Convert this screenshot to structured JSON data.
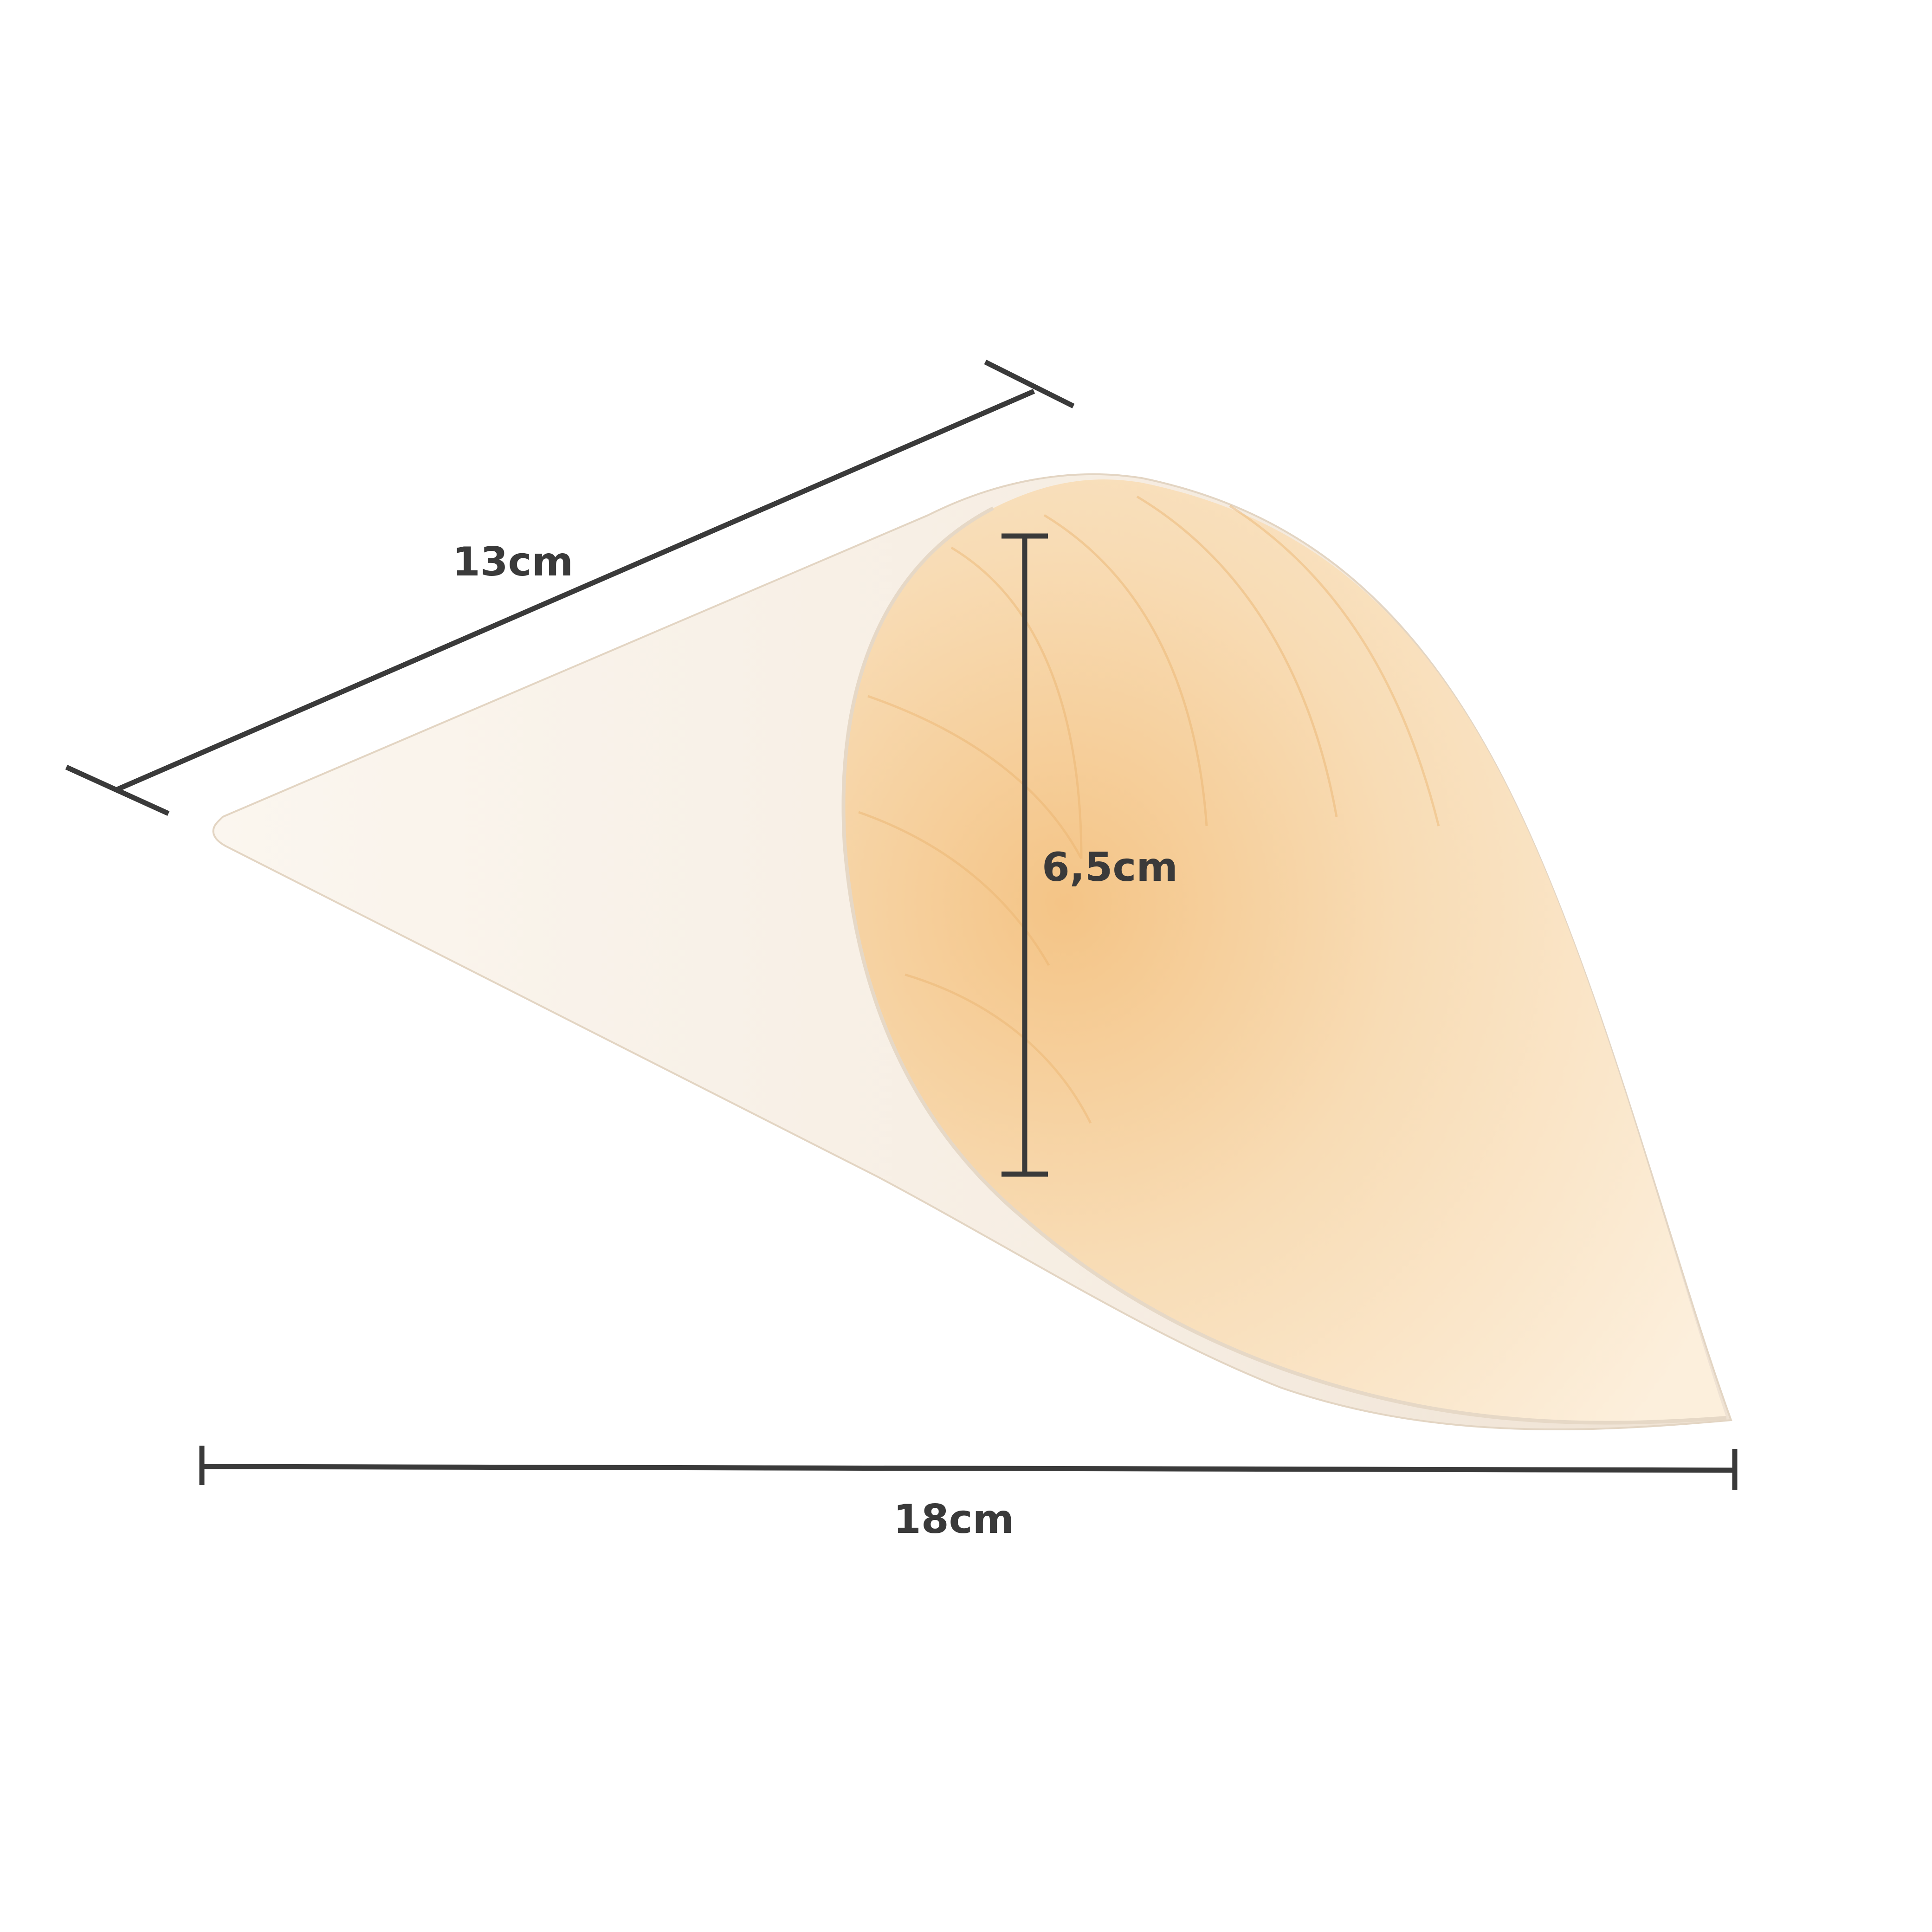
{
  "product": {
    "outer_color": "#f4ece2",
    "inner_color_light": "#fbe7c9",
    "inner_color_dark": "#f2c68e",
    "grain_color": "#e8b06a"
  },
  "dimensions": {
    "line_color": "#3a3a3a",
    "length": {
      "label": "13cm"
    },
    "opening": {
      "label": "6,5cm"
    },
    "width": {
      "label": "18cm"
    }
  }
}
